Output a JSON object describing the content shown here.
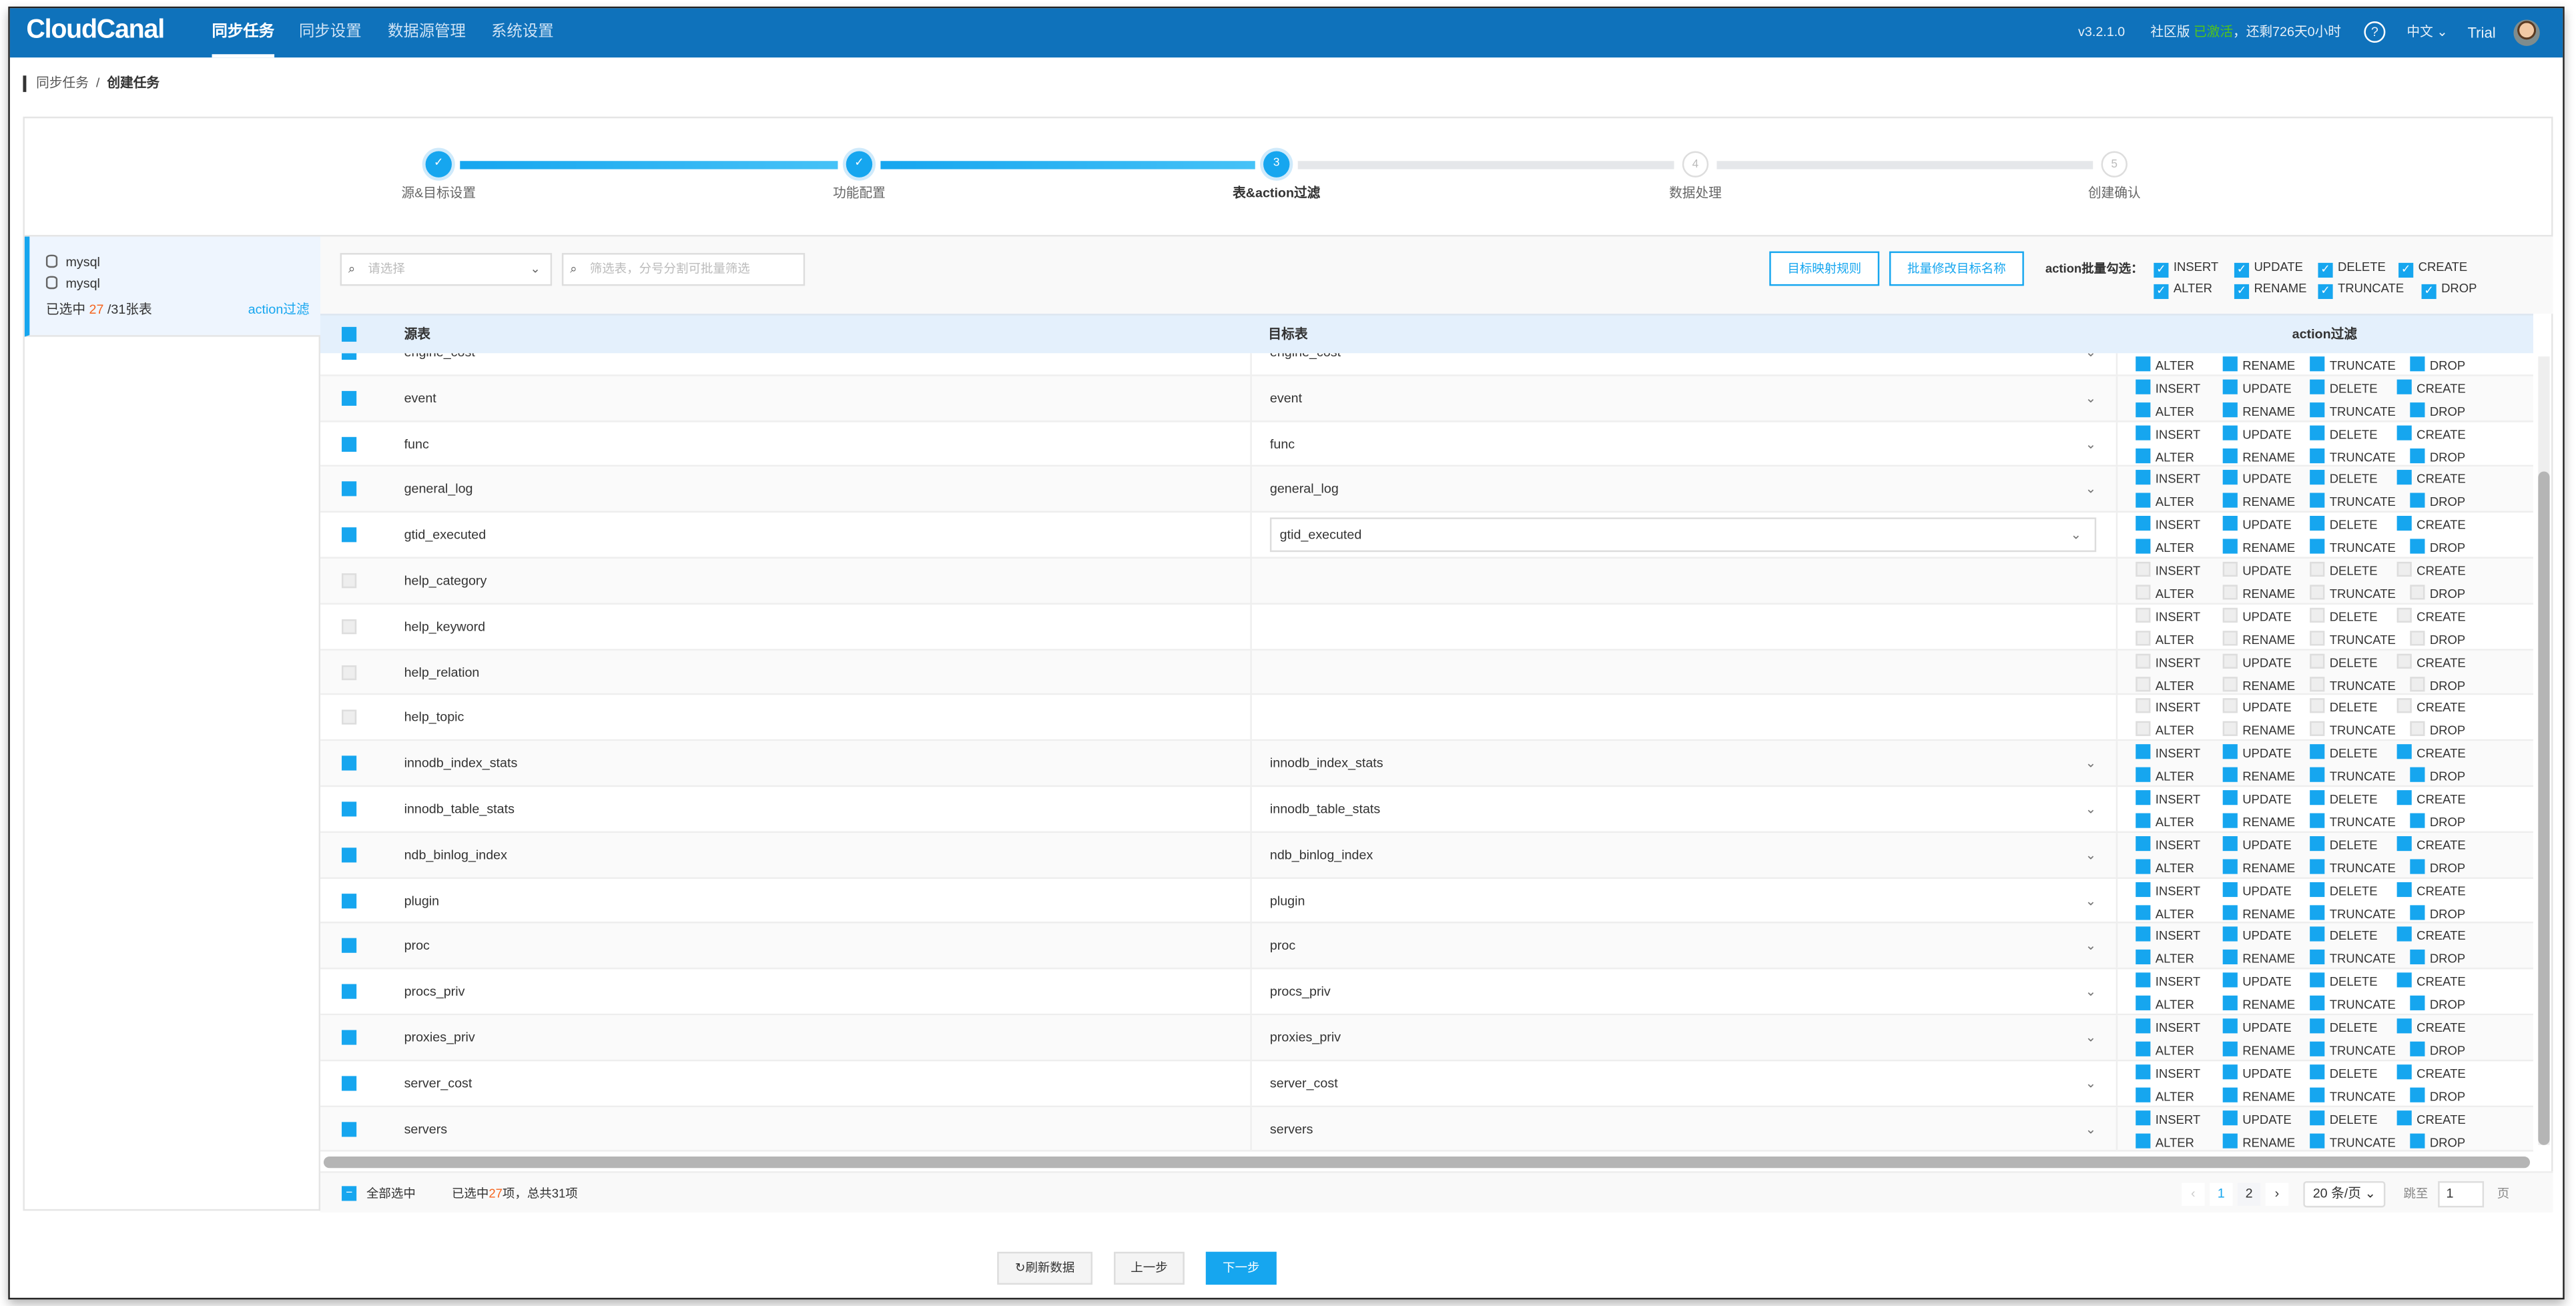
{
  "app": {
    "logo": "CloudCanal",
    "nav": [
      "同步任务",
      "同步设置",
      "数据源管理",
      "系统设置"
    ],
    "active_nav": 0,
    "version": "v3.2.1.0",
    "edition": "社区版",
    "activated": "已激活",
    "remaining": "，还剩726天0小时",
    "language": "中文",
    "user": "Trial",
    "colors": {
      "topbar": "#0f72bb",
      "accent": "#16a6ef",
      "highlight": "#f5641e"
    }
  },
  "breadcrumb": {
    "parent": "同步任务",
    "current": "创建任务"
  },
  "steps": [
    {
      "num": "✓",
      "label": "源&目标设置",
      "state": "done"
    },
    {
      "num": "✓",
      "label": "功能配置",
      "state": "done"
    },
    {
      "num": "3",
      "label": "表&action过滤",
      "state": "current"
    },
    {
      "num": "4",
      "label": "数据处理",
      "state": "todo"
    },
    {
      "num": "5",
      "label": "创建确认",
      "state": "todo"
    }
  ],
  "left": {
    "source_db": "mysql",
    "target_db": "mysql",
    "selected_prefix": "已选中",
    "selected": "27",
    "total_suffix": "/31张表",
    "action_link": "action过滤"
  },
  "toolbar": {
    "select_placeholder": "请选择",
    "filter_placeholder": "筛选表，分号分割可批量筛选",
    "mapping_rule": "目标映射规则",
    "batch_rename": "批量修改目标名称",
    "batch_label": "action批量勾选：",
    "batch_actions": [
      {
        "label": "INSERT",
        "checked": true
      },
      {
        "label": "UPDATE",
        "checked": true
      },
      {
        "label": "DELETE",
        "checked": true
      },
      {
        "label": "CREATE",
        "checked": true
      },
      {
        "label": "ALTER",
        "checked": true
      },
      {
        "label": "RENAME",
        "checked": true
      },
      {
        "label": "TRUNCATE",
        "checked": true
      },
      {
        "label": "DROP",
        "checked": true
      }
    ]
  },
  "table": {
    "headers": {
      "source": "源表",
      "target": "目标表",
      "action": "action过滤"
    },
    "actions": [
      "INSERT",
      "UPDATE",
      "DELETE",
      "CREATE",
      "ALTER",
      "RENAME",
      "TRUNCATE",
      "DROP"
    ],
    "rows": [
      {
        "source": "engine_cost",
        "target": "engine_cost",
        "checked": true
      },
      {
        "source": "event",
        "target": "event",
        "checked": true
      },
      {
        "source": "func",
        "target": "func",
        "checked": true
      },
      {
        "source": "general_log",
        "target": "general_log",
        "checked": true
      },
      {
        "source": "gtid_executed",
        "target": "gtid_executed",
        "checked": true,
        "focused": true
      },
      {
        "source": "help_category",
        "target": "",
        "checked": false
      },
      {
        "source": "help_keyword",
        "target": "",
        "checked": false
      },
      {
        "source": "help_relation",
        "target": "",
        "checked": false
      },
      {
        "source": "help_topic",
        "target": "",
        "checked": false
      },
      {
        "source": "innodb_index_stats",
        "target": "innodb_index_stats",
        "checked": true
      },
      {
        "source": "innodb_table_stats",
        "target": "innodb_table_stats",
        "checked": true
      },
      {
        "source": "ndb_binlog_index",
        "target": "ndb_binlog_index",
        "checked": true
      },
      {
        "source": "plugin",
        "target": "plugin",
        "checked": true
      },
      {
        "source": "proc",
        "target": "proc",
        "checked": true
      },
      {
        "source": "procs_priv",
        "target": "procs_priv",
        "checked": true
      },
      {
        "source": "proxies_priv",
        "target": "proxies_priv",
        "checked": true
      },
      {
        "source": "server_cost",
        "target": "server_cost",
        "checked": true
      },
      {
        "source": "servers",
        "target": "servers",
        "checked": true
      }
    ]
  },
  "footer": {
    "select_all": "全部选中",
    "summary_prefix": "已选中",
    "summary_selected": "27",
    "summary_suffix": "项，总共31项",
    "pages": [
      "1",
      "2"
    ],
    "current_page": "1",
    "page_size": "20 条/页",
    "jump_label": "跳至",
    "jump_value": "1",
    "page_unit": "页"
  },
  "bottom": {
    "refresh": "刷新数据",
    "prev": "上一步",
    "next": "下一步"
  }
}
